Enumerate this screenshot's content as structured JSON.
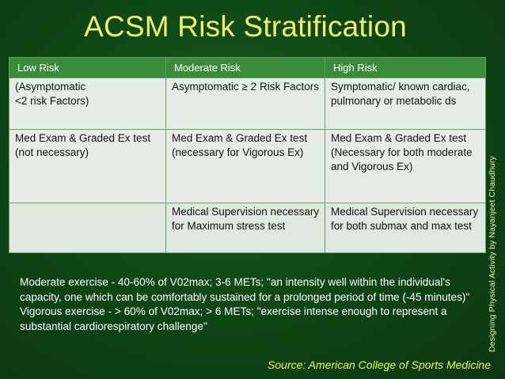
{
  "slide": {
    "title": "ACSM Risk Stratification",
    "source": "Source: American College of Sports Medicine",
    "side_credit": "Designing Physical Activity  by Nayanjeet Chaudhury"
  },
  "table": {
    "headers": [
      "Low Risk",
      "Moderate Risk",
      "High Risk"
    ],
    "rows": [
      [
        "(Asymptomatic\n<2 risk Factors)",
        "Asymptomatic ≥ 2 Risk Factors",
        "Symptomatic/ known cardiac, pulmonary or metabolic ds"
      ],
      [
        "Med Exam & Graded Ex test\n(not necessary)",
        "Med Exam & Graded Ex test\n(necessary for Vigorous Ex)",
        "Med Exam & Graded Ex test\n(Necessary for both moderate and Vigorous Ex)"
      ],
      [
        "",
        "Medical Supervision necessary for Maximum stress test",
        "Medical Supervision necessary for both submax and max test"
      ]
    ]
  },
  "notes": [
    "Moderate exercise - 40-60% of V02max; 3-6 METs; \"an intensity well within the individual's capacity, one which can be comfortably sustained for a prolonged period of time (-45 minutes)\"",
    "Vigorous exercise - > 60% of V02max; > 6 METs; \"exercise intense enough to represent a substantial cardiorespiratory challenge\""
  ],
  "colors": {
    "background": "#0e4515",
    "title": "#f3f06a",
    "header_fill": "#3a8b3a",
    "cell_fill": "#dfe9df"
  }
}
